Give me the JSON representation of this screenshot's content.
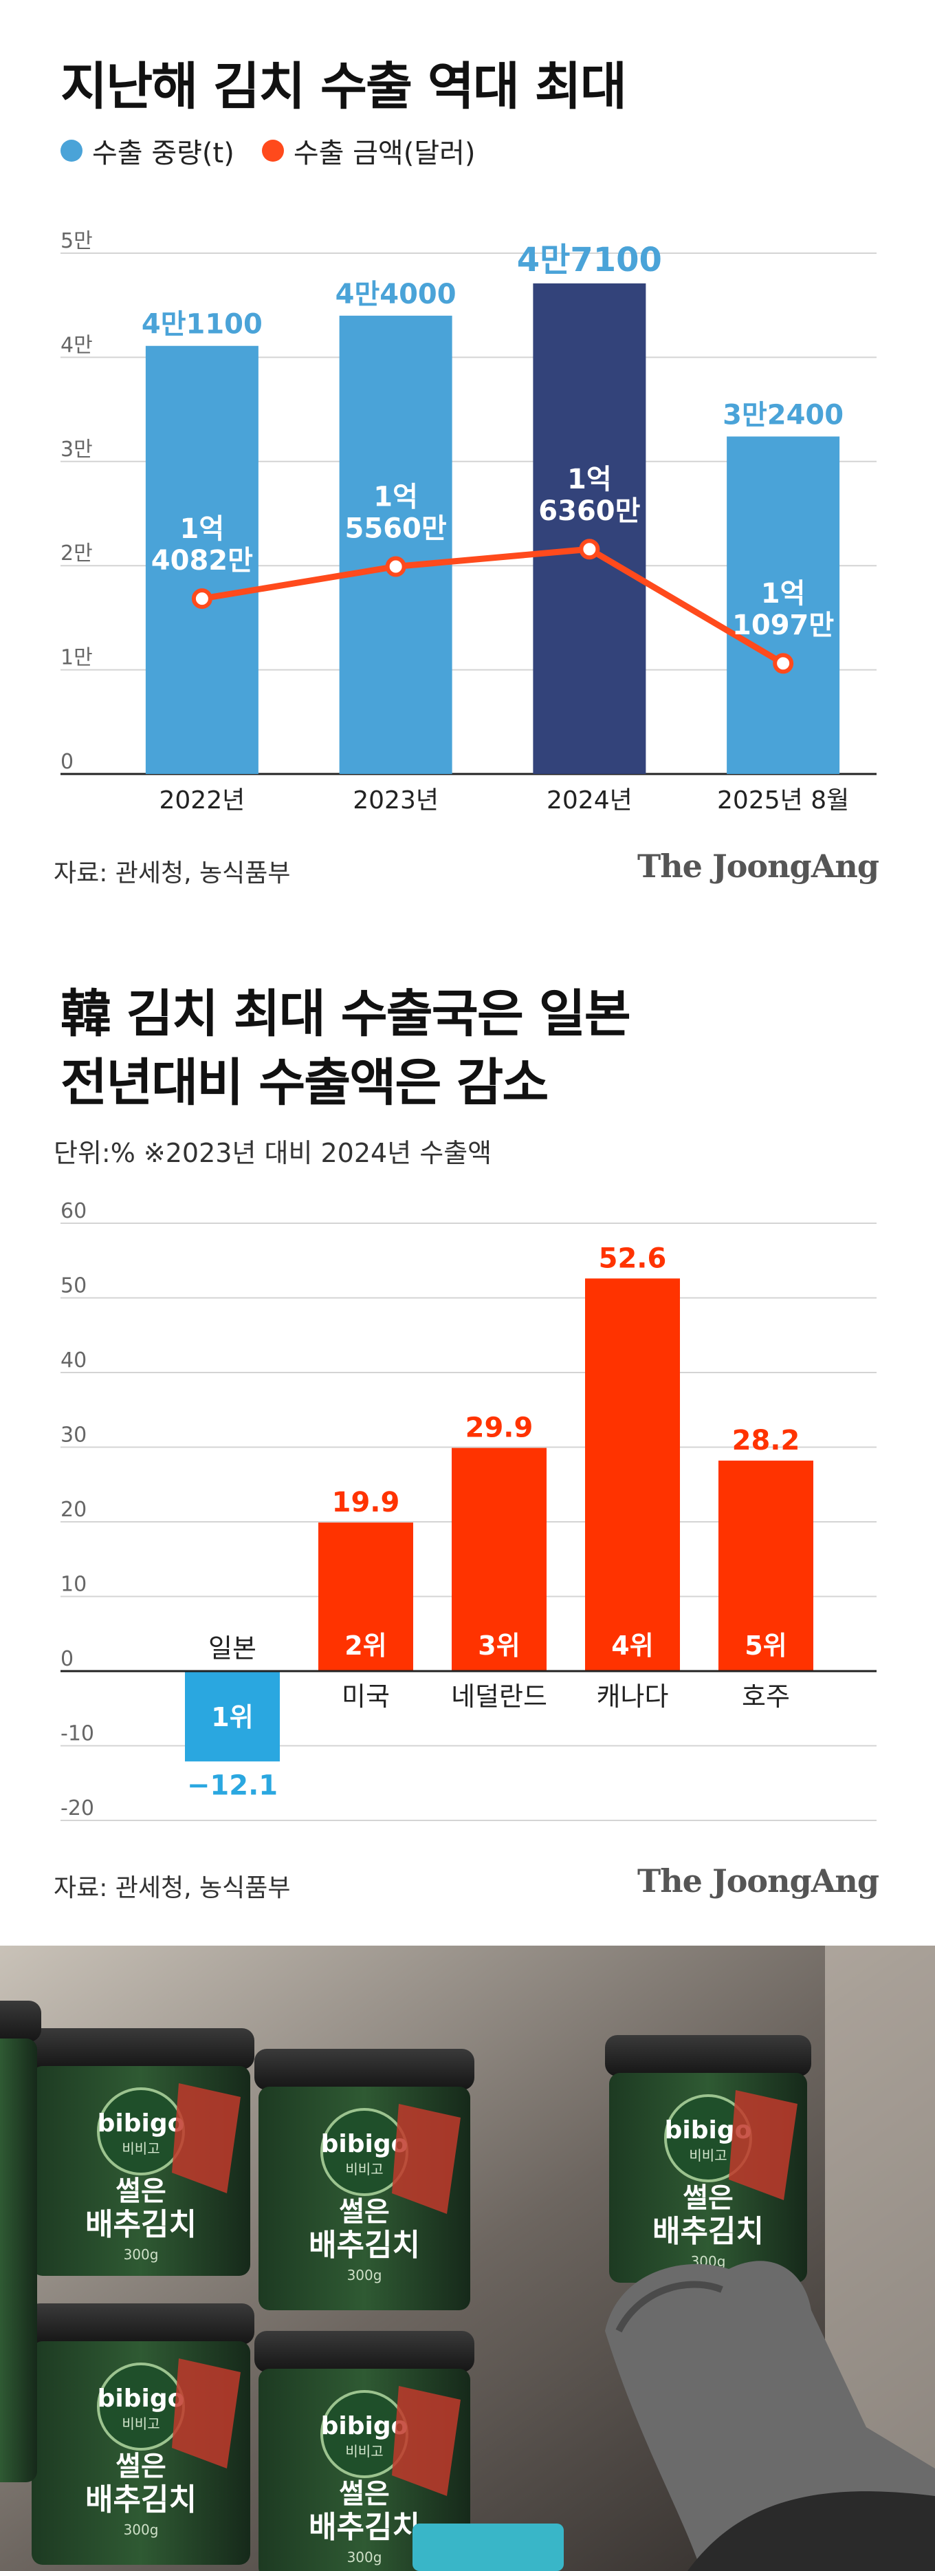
{
  "chart1": {
    "title": "지난해 김치 수출 역대 최대",
    "legend": [
      {
        "label": "수출 중량(t)",
        "color": "#4aa3d8"
      },
      {
        "label": "수출 금액(달러)",
        "color": "#ff4a1c"
      }
    ],
    "source": "자료: 관세청, 농식품부",
    "brand": "The JoongAng"
  },
  "chart2": {
    "title_line1": "韓 김치 최대 수출국은 일본",
    "title_line2": "전년대비 수출액은 감소",
    "unit_note": "단위:%  ※2023년 대비 2024년 수출액",
    "source": "자료: 관세청, 농식품부",
    "brand": "The JoongAng"
  },
  "chart_data": [
    {
      "type": "bar",
      "categories": [
        "2022년",
        "2023년",
        "2024년",
        "2025년 8월"
      ],
      "y_ticks": [
        "0",
        "1만",
        "2만",
        "3만",
        "4만",
        "5만"
      ],
      "ylim": [
        0,
        50000
      ],
      "series": [
        {
          "name": "수출 중량(t)",
          "values": [
            41100,
            44000,
            47100,
            32400
          ],
          "labels": [
            "4만1100",
            "4만4000",
            "4만7100",
            "3만2400"
          ],
          "colors": [
            "#4aa3d8",
            "#4aa3d8",
            "#33437a",
            "#4aa3d8"
          ]
        },
        {
          "name": "수출 금액(달러)",
          "type": "line",
          "values": [
            140820000,
            155600000,
            163600000,
            110970000
          ],
          "labels": [
            [
              "1억",
              "4082만"
            ],
            [
              "1억",
              "5560만"
            ],
            [
              "1억",
              "6360만"
            ],
            [
              "1억",
              "1097만"
            ]
          ],
          "color": "#ff4a1c"
        }
      ]
    },
    {
      "type": "bar",
      "categories": [
        "일본",
        "미국",
        "네덜란드",
        "캐나다",
        "호주"
      ],
      "ranks": [
        "1위",
        "2위",
        "3위",
        "4위",
        "5위"
      ],
      "values": [
        -12.1,
        19.9,
        29.9,
        52.6,
        28.2
      ],
      "value_labels": [
        "−12.1",
        "19.9",
        "29.9",
        "52.6",
        "28.2"
      ],
      "colors": [
        "#2aa7e0",
        "#ff3300",
        "#ff3300",
        "#ff3300",
        "#ff3300"
      ],
      "y_ticks": [
        60,
        50,
        40,
        30,
        20,
        10,
        0,
        -10,
        -20
      ],
      "ylim": [
        -20,
        60
      ]
    }
  ],
  "photo": {
    "product_brand": "bibigo",
    "product_brand_kr": "비비고",
    "product_name_line1": "썰은",
    "product_name_line2": "배추김치",
    "product_weight": "300g"
  }
}
